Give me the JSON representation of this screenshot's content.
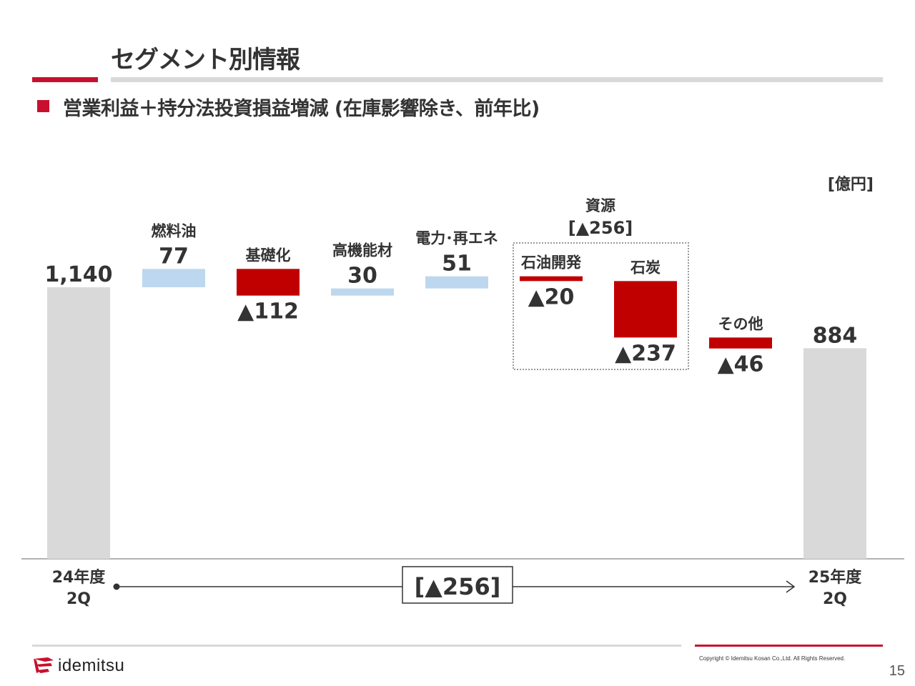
{
  "header": {
    "title": "セグメント別情報",
    "subtitle": "営業利益＋持分法投資損益増減 (在庫影響除き、前年比)"
  },
  "chart_data": {
    "type": "waterfall",
    "unit": "[億円]",
    "ylim": [
      0,
      1240
    ],
    "total_change_label": "[▲256]",
    "bars": [
      {
        "kind": "total",
        "line1": "24年度",
        "line2": "2Q",
        "value": 1140,
        "label": "1,140"
      },
      {
        "kind": "delta",
        "name": "燃料油",
        "value": 77,
        "label": "77"
      },
      {
        "kind": "delta",
        "name": "基礎化",
        "value": -112,
        "label": "▲112"
      },
      {
        "kind": "delta",
        "name": "高機能材",
        "value": 30,
        "label": "30"
      },
      {
        "kind": "delta",
        "name": "電力･再エネ",
        "value": 51,
        "label": "51"
      },
      {
        "kind": "delta",
        "name": "石油開発",
        "value": -20,
        "label": "▲20"
      },
      {
        "kind": "delta",
        "name": "石炭",
        "value": -237,
        "label": "▲237"
      },
      {
        "kind": "delta",
        "name": "その他",
        "value": -46,
        "label": "▲46"
      },
      {
        "kind": "total",
        "line1": "25年度",
        "line2": "2Q",
        "value": 884,
        "label": "884"
      }
    ],
    "group": {
      "name": "資源",
      "label": "[▲256]",
      "members": [
        5,
        6
      ]
    },
    "colors": {
      "total": "#d9d9d9",
      "increase": "#bdd7ee",
      "decrease": "#c00000"
    }
  },
  "footer": {
    "copyright": "Copyright © Idemitsu Kosan Co.,Ltd.  All Rights Reserved.",
    "page_number": "15",
    "logo_text": "idemitsu"
  }
}
